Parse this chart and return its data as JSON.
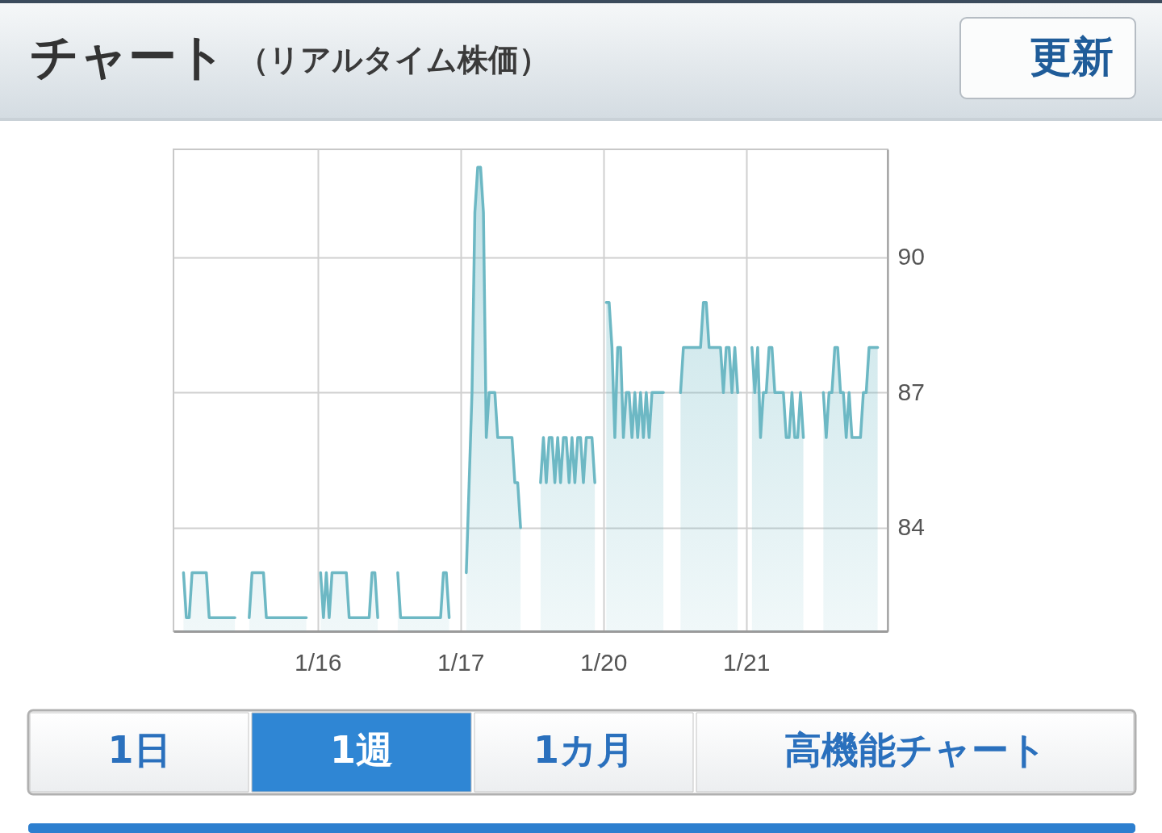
{
  "chart_data": {
    "type": "area",
    "title": "チャート",
    "subtitle": "（リアルタイム株価）",
    "annotations": [
      "更新",
      "1日",
      "1週",
      "1カ月",
      "高機能チャート"
    ],
    "categories": [
      null,
      null,
      null,
      null,
      null,
      null,
      null,
      null,
      null,
      null,
      null,
      null,
      null,
      null,
      null,
      null,
      null,
      null,
      null,
      null,
      null,
      null,
      null,
      null,
      null,
      null,
      null,
      null,
      null,
      null,
      null,
      null,
      null,
      null,
      null,
      null,
      null,
      null,
      null,
      null,
      null,
      null,
      null,
      null,
      null,
      null,
      null,
      null,
      null,
      null,
      "1/16",
      null,
      null,
      null,
      null,
      null,
      null,
      null,
      null,
      null,
      null,
      null,
      null,
      null,
      null,
      null,
      null,
      null,
      null,
      null,
      null,
      null,
      null,
      null,
      null,
      null,
      null,
      null,
      null,
      null,
      null,
      null,
      null,
      null,
      null,
      null,
      null,
      null,
      null,
      null,
      null,
      null,
      null,
      null,
      null,
      null,
      null,
      null,
      null,
      null,
      "1/17",
      null,
      null,
      null,
      null,
      null,
      null,
      null,
      null,
      null,
      null,
      null,
      null,
      null,
      null,
      null,
      null,
      null,
      null,
      null,
      null,
      null,
      null,
      null,
      null,
      null,
      null,
      null,
      null,
      null,
      null,
      null,
      null,
      null,
      null,
      null,
      null,
      null,
      null,
      null,
      null,
      null,
      null,
      null,
      null,
      null,
      null,
      null,
      null,
      null,
      "1/20",
      null,
      null,
      null,
      null,
      null,
      null,
      null,
      null,
      null,
      null,
      null,
      null,
      null,
      null,
      null,
      null,
      null,
      null,
      null,
      null,
      null,
      null,
      null,
      null,
      null,
      null,
      null,
      null,
      null,
      null,
      null,
      null,
      null,
      null,
      null,
      null,
      null,
      null,
      null,
      null,
      null,
      null,
      null,
      null,
      null,
      null,
      null,
      null,
      null,
      "1/21",
      null,
      null,
      null,
      null,
      null,
      null,
      null,
      null,
      null,
      null,
      null,
      null,
      null,
      null,
      null,
      null,
      null,
      null,
      null,
      null,
      null,
      null,
      null,
      null,
      null,
      null,
      null,
      null,
      null,
      null,
      null,
      null,
      null,
      null,
      null,
      null,
      null,
      null,
      null,
      null,
      null,
      null,
      null,
      null,
      null,
      null,
      null,
      null,
      null
    ],
    "series": [
      {
        "color": "#6db8c4",
        "values": [
          null,
          null,
          null,
          83,
          82,
          82,
          83,
          83,
          83,
          83,
          83,
          83,
          82,
          82,
          82,
          82,
          82,
          82,
          82,
          82,
          82,
          82,
          null,
          null,
          null,
          null,
          82,
          83,
          83,
          83,
          83,
          83,
          82,
          82,
          82,
          82,
          82,
          82,
          82,
          82,
          82,
          82,
          82,
          82,
          82,
          82,
          82,
          null,
          null,
          null,
          null,
          83,
          82,
          83,
          82,
          83,
          83,
          83,
          83,
          83,
          83,
          82,
          82,
          82,
          82,
          82,
          82,
          82,
          82,
          83,
          83,
          82,
          null,
          null,
          null,
          null,
          null,
          null,
          83,
          82,
          82,
          82,
          82,
          82,
          82,
          82,
          82,
          82,
          82,
          82,
          82,
          82,
          82,
          82,
          83,
          83,
          82,
          null,
          null,
          null,
          null,
          null,
          83,
          85,
          87,
          91,
          92,
          92,
          91,
          86,
          87,
          87,
          87,
          86,
          86,
          86,
          86,
          86,
          86,
          85,
          85,
          84,
          null,
          null,
          null,
          null,
          null,
          null,
          85,
          86,
          85,
          86,
          86,
          85,
          86,
          85,
          86,
          86,
          85,
          86,
          85,
          86,
          86,
          85,
          86,
          86,
          86,
          85,
          null,
          null,
          null,
          89,
          89,
          88,
          86,
          88,
          88,
          86,
          87,
          87,
          86,
          87,
          86,
          87,
          86,
          87,
          86,
          87,
          87,
          87,
          87,
          87,
          null,
          null,
          null,
          null,
          null,
          87,
          88,
          88,
          88,
          88,
          88,
          88,
          88,
          89,
          89,
          88,
          88,
          88,
          88,
          88,
          87,
          88,
          88,
          87,
          88,
          87,
          null,
          null,
          null,
          null,
          88,
          87,
          88,
          86,
          87,
          87,
          88,
          88,
          87,
          87,
          87,
          87,
          86,
          86,
          87,
          86,
          86,
          87,
          86,
          null,
          null,
          null,
          null,
          null,
          null,
          87,
          86,
          87,
          87,
          88,
          88,
          87,
          87,
          86,
          87,
          86,
          86,
          86,
          86,
          87,
          87,
          88,
          88,
          88,
          88,
          null,
          null,
          null
        ]
      }
    ],
    "ylim": [
      81.7,
      92.4
    ],
    "yticks": [
      84,
      87,
      90
    ],
    "grid": true
  }
}
